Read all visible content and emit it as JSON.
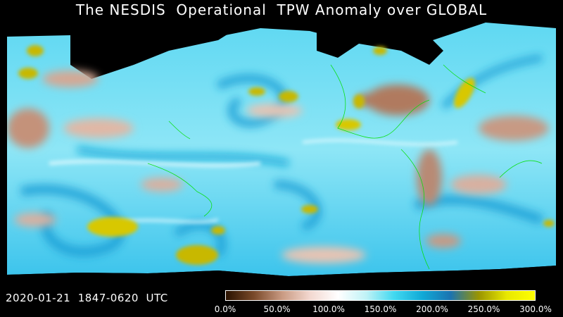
{
  "title": "The NESDIS  Operational  TPW Anomaly over GLOBAL",
  "timestamp": "2020-01-21  1847-0620  UTC",
  "colorbar": {
    "stops": [
      "#2a1200",
      "#7a4a2a",
      "#c99a82",
      "#f3d8d0",
      "#ffffff",
      "#bff2f6",
      "#40d8f0",
      "#10a9d6",
      "#1b73b0",
      "#9a9400",
      "#e8e800",
      "#ffff00"
    ],
    "ticks": [
      "0.0%",
      "50.0%",
      "100.0%",
      "150.0%",
      "200.0%",
      "250.0%",
      "300.0%"
    ]
  },
  "colors": {
    "background": "#000000",
    "ocean_anomaly": "#40d2f0",
    "dry_land": "#c4927a",
    "high_anomaly": "#d8c800",
    "coastline": "#00e000"
  }
}
